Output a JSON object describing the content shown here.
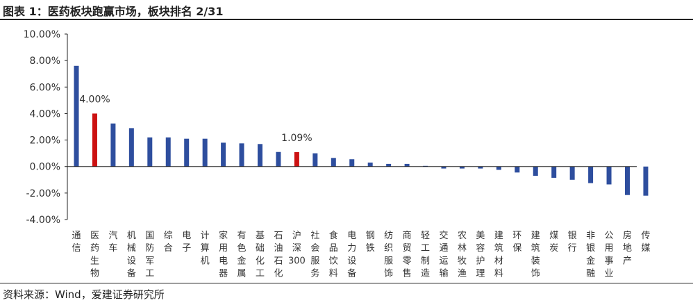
{
  "figure": {
    "title": "图表 1：医药板块跑赢市场，板块排名 2/31",
    "source": "资料来源：Wind，爱建证券研究所"
  },
  "colors": {
    "bar": "#2E4E9E",
    "highlight": "#CC1111",
    "axis": "#222222"
  },
  "chart_data": {
    "type": "bar",
    "title": "",
    "xlabel": "",
    "ylabel": "",
    "ylim": [
      -4,
      10
    ],
    "yticks": [
      -4,
      -2,
      0,
      2,
      4,
      6,
      8,
      10
    ],
    "ytick_labels": [
      "-4.00%",
      "-2.00%",
      "0.00%",
      "2.00%",
      "4.00%",
      "6.00%",
      "8.00%",
      "10.00%"
    ],
    "grid": false,
    "legend": "none",
    "categories": [
      "通信",
      "医药生物",
      "汽车",
      "机械设备",
      "国防军工",
      "综合",
      "电子",
      "计算机",
      "家用电器",
      "有色金属",
      "基础化工",
      "石油石化",
      "沪深300",
      "社会服务",
      "食品饮料",
      "电力设备",
      "钢铁",
      "纺织服饰",
      "商贸零售",
      "轻工制造",
      "交通运输",
      "农林牧渔",
      "美容护理",
      "建筑材料",
      "环保",
      "建筑装饰",
      "煤炭",
      "银行",
      "非银金融",
      "公用事业",
      "房地产",
      "传媒"
    ],
    "values": [
      7.6,
      4.0,
      3.25,
      2.9,
      2.2,
      2.2,
      2.1,
      2.1,
      1.8,
      1.75,
      1.7,
      1.1,
      1.09,
      1.0,
      0.65,
      0.55,
      0.3,
      0.2,
      0.2,
      0.05,
      -0.15,
      -0.15,
      -0.15,
      -0.25,
      -0.45,
      -0.7,
      -0.85,
      -1.0,
      -1.25,
      -1.35,
      -2.15,
      -2.2
    ],
    "highlighted": [
      "医药生物",
      "沪深300"
    ],
    "data_labels": [
      {
        "category": "医药生物",
        "text": "4.00%"
      },
      {
        "category": "沪深300",
        "text": "1.09%"
      }
    ]
  }
}
